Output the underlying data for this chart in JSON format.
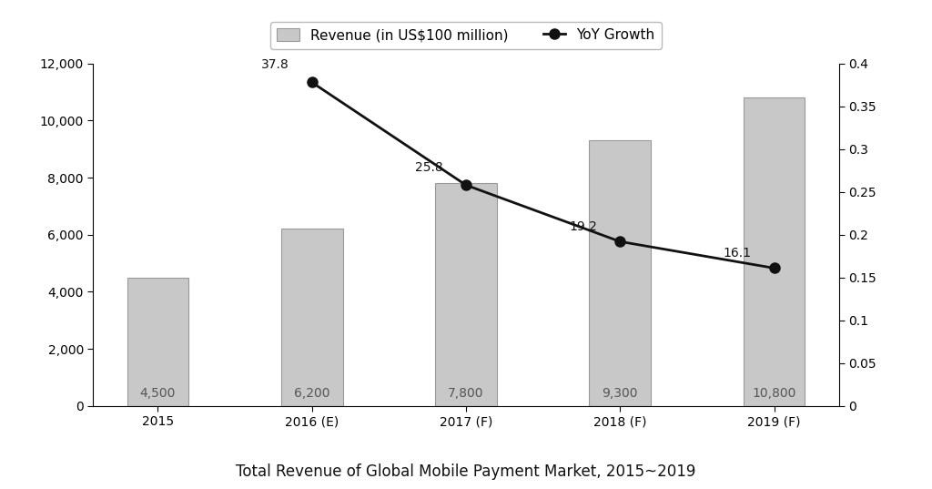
{
  "categories": [
    "2015",
    "2016 (E)",
    "2017 (F)",
    "2018 (F)",
    "2019 (F)"
  ],
  "revenue": [
    4500,
    6200,
    7800,
    9300,
    10800
  ],
  "yoy_growth": [
    null,
    37.8,
    25.8,
    19.2,
    16.1
  ],
  "yoy_growth_pct": [
    null,
    0.378,
    0.258,
    0.192,
    0.161
  ],
  "bar_color": "#c8c8c8",
  "bar_edgecolor": "#999999",
  "line_color": "#111111",
  "marker_color": "#111111",
  "title": "Total Revenue of Global Mobile Payment Market, 2015~2019",
  "title_fontsize": 12,
  "legend_label_bar": "Revenue (in US$100 million)",
  "legend_label_line": "YoY Growth",
  "ylim_left": [
    0,
    12000
  ],
  "ylim_right": [
    0,
    0.4
  ],
  "yticks_left": [
    0,
    2000,
    4000,
    6000,
    8000,
    10000,
    12000
  ],
  "yticks_right": [
    0,
    0.05,
    0.1,
    0.15,
    0.2,
    0.25,
    0.3,
    0.35,
    0.4
  ],
  "ytick_right_labels": [
    "0",
    "0.05",
    "0.1",
    "0.15",
    "0.2",
    "0.25",
    "0.3",
    "0.35",
    "0.4"
  ],
  "background_color": "#ffffff",
  "bar_label_fontsize": 10,
  "annotation_fontsize": 10,
  "bar_width": 0.4,
  "tick_fontsize": 10
}
